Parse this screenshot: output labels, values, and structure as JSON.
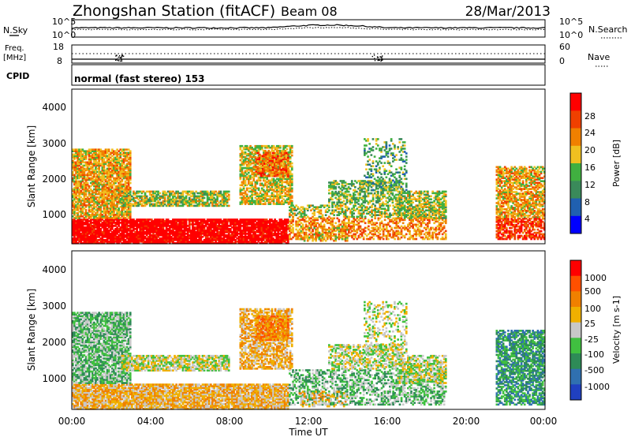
{
  "header": {
    "title": "Zhongshan Station (fitACF)",
    "beam": "Beam 08",
    "date": "28/Mar/2013"
  },
  "top_panel": {
    "left_label": "N.Sky",
    "right_label": "N.Search",
    "ticks_left": [
      "10^5",
      "10^0"
    ],
    "ticks_right": [
      "10^5",
      "10^0"
    ]
  },
  "freq_panel": {
    "left_label_line1": "Freq.",
    "left_label_line2": "[MHz]",
    "right_label": "Nave",
    "ticks_left": [
      "18",
      "8"
    ],
    "ticks_right": [
      "60",
      "0"
    ]
  },
  "cpid": {
    "label": "CPID",
    "value": "normal (fast stereo) 153"
  },
  "colors": {
    "power_scale": [
      "#0000ff",
      "#2060b0",
      "#3a8a5a",
      "#40b040",
      "#f0c020",
      "#f08000",
      "#f04000",
      "#ff0000"
    ],
    "velocity_scale": [
      "#2040c0",
      "#3070b0",
      "#2e8b57",
      "#40c040",
      "#c8c8c8",
      "#f0b000",
      "#f08000",
      "#ff5000",
      "#ff0000"
    ]
  },
  "chart_data": [
    {
      "type": "heatmap",
      "panel": "power",
      "ylabel": "Slant Range [km]",
      "yticks": [
        "4000",
        "3000",
        "2000",
        "1000"
      ],
      "ylim": [
        180,
        4600
      ],
      "xlim": [
        "00:00",
        "24:00"
      ],
      "colorbar_label": "Power [dB]",
      "colorbar_ticks": [
        "28",
        "24",
        "20",
        "16",
        "12",
        "8",
        "4"
      ],
      "colorbar_range": [
        0,
        32
      ]
    },
    {
      "type": "heatmap",
      "panel": "velocity",
      "ylabel": "Slant Range [km]",
      "yticks": [
        "4000",
        "3000",
        "2000",
        "1000"
      ],
      "ylim": [
        180,
        4600
      ],
      "xlim": [
        "00:00",
        "24:00"
      ],
      "colorbar_label": "Velocity [m s-1]",
      "colorbar_ticks": [
        "1000",
        "500",
        "100",
        "25",
        "-25",
        "-100",
        "-500",
        "-1000"
      ]
    }
  ],
  "xaxis": {
    "ticks": [
      "00:00",
      "04:00",
      "08:00",
      "12:00",
      "16:00",
      "20:00",
      "00:00"
    ],
    "label": "Time UT"
  }
}
